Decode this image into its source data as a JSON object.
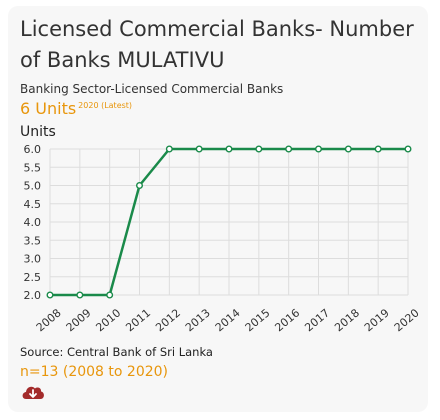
{
  "header": {
    "title": "Licensed Commercial Banks- Number of Banks MULATIVU",
    "subtitle": "Banking Sector-Licensed Commercial Banks",
    "latest_value": "6 Units",
    "latest_note": "2020 (Latest)",
    "unit_label": "Units"
  },
  "footer": {
    "source": "Source: Central Bank of Sri Lanka",
    "count": "n=13 (2008 to 2020)",
    "download_icon": "cloud-download-icon"
  },
  "colors": {
    "line": "#1a8a4a",
    "accent": "#e8960c",
    "download": "#a32b2b"
  },
  "chart_data": {
    "type": "line",
    "x": [
      "2008",
      "2009",
      "2010",
      "2011",
      "2012",
      "2013",
      "2014",
      "2015",
      "2016",
      "2017",
      "2018",
      "2019",
      "2020"
    ],
    "series": [
      {
        "values": [
          2,
          2,
          2,
          5,
          6,
          6,
          6,
          6,
          6,
          6,
          6,
          6,
          6
        ]
      }
    ],
    "yticks": [
      "2.0",
      "2.5",
      "3.0",
      "3.5",
      "4.0",
      "4.5",
      "5.0",
      "5.5",
      "6.0"
    ],
    "ylim": [
      2,
      6
    ],
    "ylabel": "Units",
    "xlabel": "",
    "grid": true
  }
}
